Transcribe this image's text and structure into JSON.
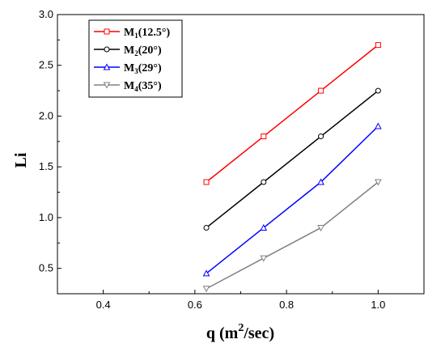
{
  "chart_data": {
    "type": "line",
    "xlabel": {
      "main": "q (m",
      "sup": "2",
      "tail": "/sec)"
    },
    "ylabel": "Li",
    "xlim": [
      0.3,
      1.1
    ],
    "ylim": [
      0.25,
      3.0
    ],
    "xticks": [
      0.4,
      0.6,
      0.8,
      1.0
    ],
    "xtick_labels": [
      "0.4",
      "0.6",
      "0.8",
      "1.0"
    ],
    "yticks": [
      0.5,
      1.0,
      1.5,
      2.0,
      2.5,
      3.0
    ],
    "ytick_labels": [
      "0.5",
      "1.0",
      "1.5",
      "2.0",
      "2.5",
      "3.0"
    ],
    "grid": false,
    "legend_position": "top-left",
    "x": [
      0.625,
      0.75,
      0.875,
      1.0
    ],
    "series": [
      {
        "label_main": "M",
        "label_sub": "1",
        "label_tail": "(12.5°)",
        "color": "#ff0000",
        "marker": "square",
        "values": [
          1.35,
          1.8,
          2.25,
          2.7
        ]
      },
      {
        "label_main": "M",
        "label_sub": "2",
        "label_tail": "(20°)",
        "color": "#000000",
        "marker": "circle",
        "values": [
          0.9,
          1.35,
          1.8,
          2.25
        ]
      },
      {
        "label_main": "M",
        "label_sub": "3",
        "label_tail": "(29°)",
        "color": "#0000ff",
        "marker": "triangle-up",
        "values": [
          0.45,
          0.9,
          1.35,
          1.9
        ]
      },
      {
        "label_main": "M",
        "label_sub": "4",
        "label_tail": "(35°)",
        "color": "#808080",
        "marker": "triangle-down",
        "values": [
          0.3,
          0.6,
          0.9,
          1.35
        ]
      }
    ]
  }
}
